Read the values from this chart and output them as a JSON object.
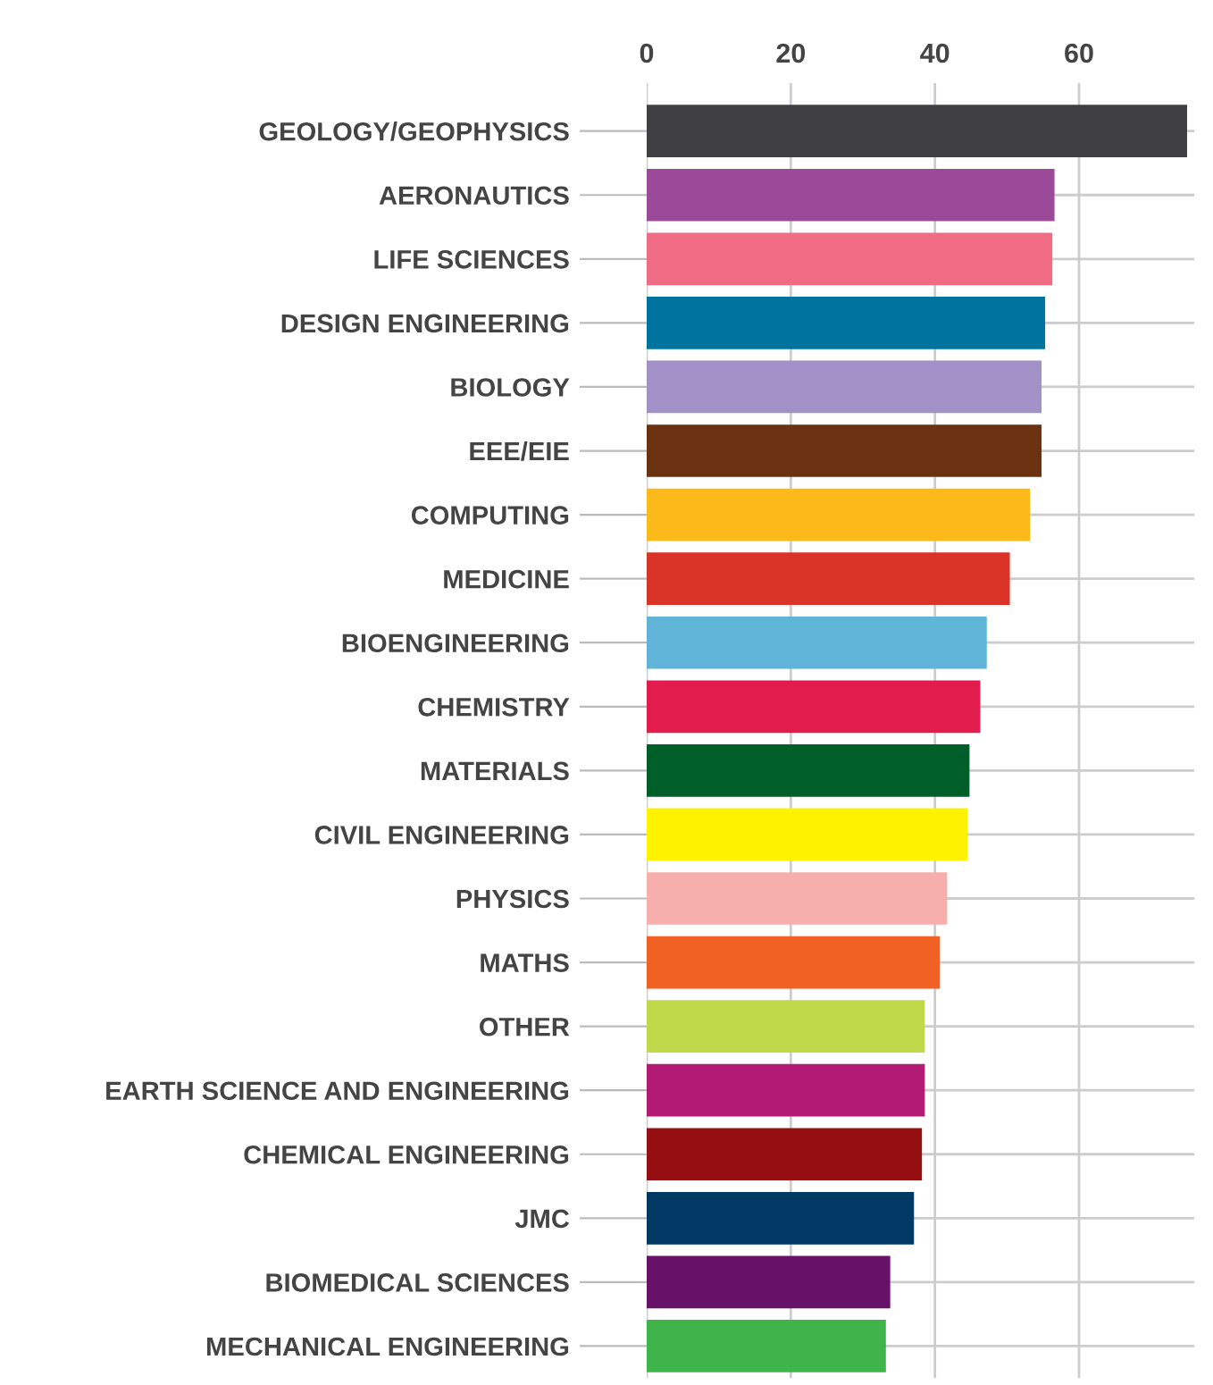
{
  "chart_data": {
    "type": "bar",
    "orientation": "horizontal",
    "categories": [
      "GEOLOGY/GEOPHYSICS",
      "AERONAUTICS",
      "LIFE SCIENCES",
      "DESIGN ENGINEERING",
      "BIOLOGY",
      "EEE/EIE",
      "COMPUTING",
      "MEDICINE",
      "BIOENGINEERING",
      "CHEMISTRY",
      "MATERIALS",
      "CIVIL ENGINEERING",
      "PHYSICS",
      "MATHS",
      "OTHER",
      "EARTH SCIENCE AND ENGINEERING",
      "CHEMICAL ENGINEERING",
      "JMC",
      "BIOMEDICAL SCIENCES",
      "MECHANICAL ENGINEERING"
    ],
    "values": [
      75.0,
      56.6,
      56.3,
      55.3,
      54.8,
      54.8,
      53.2,
      50.4,
      47.2,
      46.3,
      44.8,
      44.5,
      41.7,
      40.7,
      38.6,
      38.6,
      38.2,
      37.1,
      33.8,
      33.2
    ],
    "colors": [
      "#404042",
      "#9b4a9a",
      "#f06b84",
      "#00739f",
      "#a291c6",
      "#6b3211",
      "#fbb91a",
      "#d93427",
      "#5fb4d8",
      "#e31c4e",
      "#005e28",
      "#fff200",
      "#f7afae",
      "#f06123",
      "#bfd94a",
      "#b21a73",
      "#940e12",
      "#003963",
      "#681169",
      "#3fb44b"
    ],
    "xlim": [
      0,
      76
    ],
    "xticks": [
      0,
      20,
      40,
      60
    ],
    "grid": true
  }
}
